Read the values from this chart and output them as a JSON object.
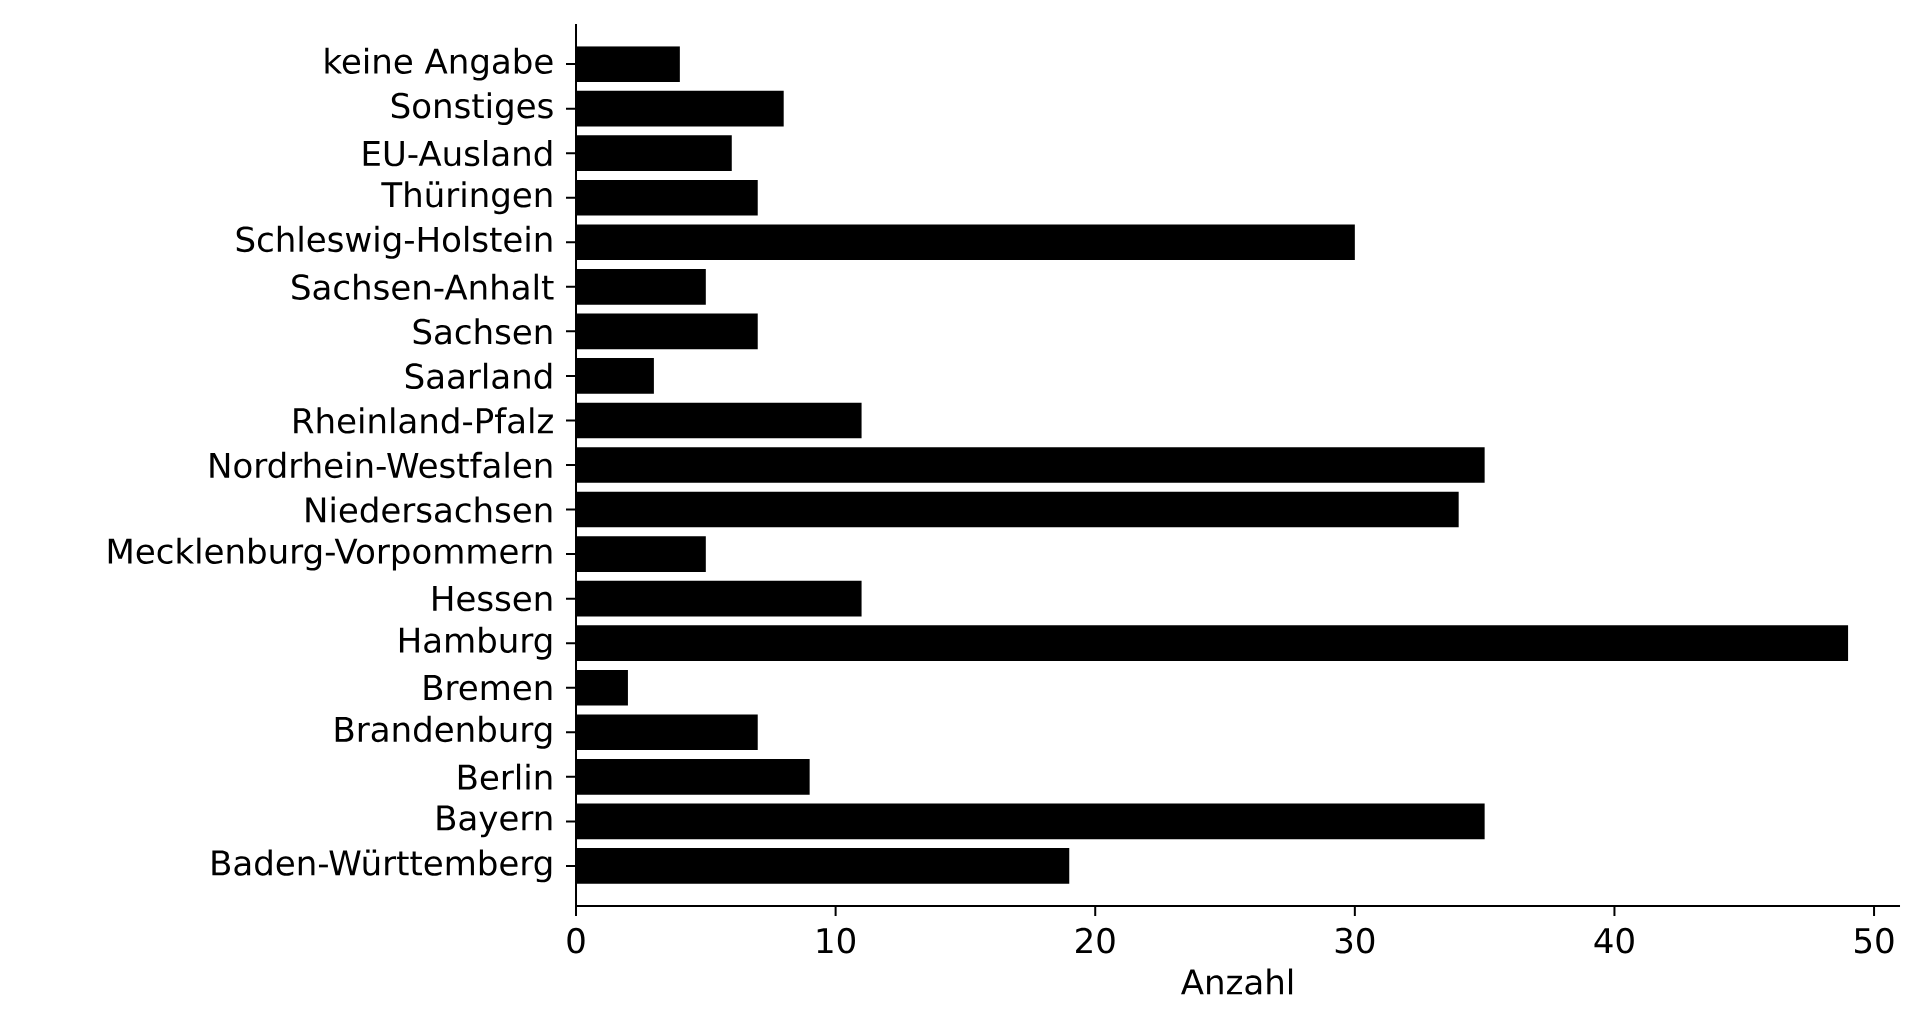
{
  "chart_data": {
    "type": "bar",
    "orientation": "horizontal",
    "xlabel": "Anzahl",
    "categories": [
      "keine Angabe",
      "Sonstiges",
      "EU-Ausland",
      "Thüringen",
      "Schleswig-Holstein",
      "Sachsen-Anhalt",
      "Sachsen",
      "Saarland",
      "Rheinland-Pfalz",
      "Nordrhein-Westfalen",
      "Niedersachsen",
      "Mecklenburg-Vorpommern",
      "Hessen",
      "Hamburg",
      "Bremen",
      "Brandenburg",
      "Berlin",
      "Bayern",
      "Baden-Württemberg"
    ],
    "values": [
      4,
      8,
      6,
      7,
      30,
      5,
      7,
      3,
      11,
      35,
      34,
      5,
      11,
      49,
      2,
      7,
      9,
      35,
      19
    ],
    "color": "#000000",
    "xlim": [
      0,
      51
    ],
    "xticks": [
      0,
      10,
      20,
      30,
      40,
      50
    ],
    "grid": false
  }
}
